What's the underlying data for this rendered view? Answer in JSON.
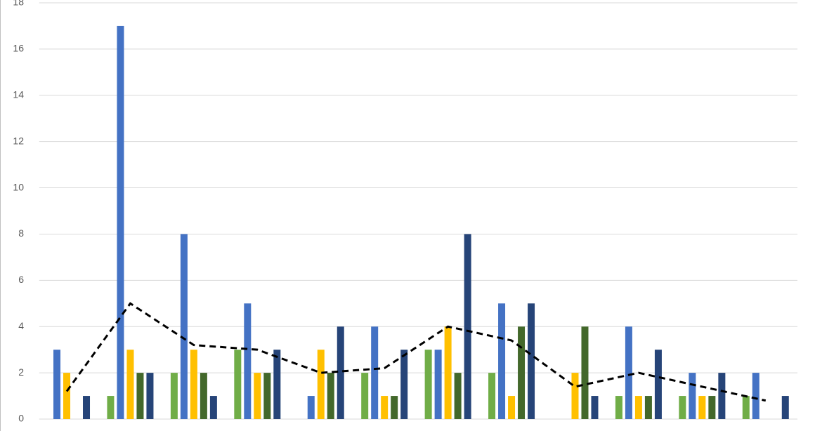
{
  "chart_data": {
    "type": "bar",
    "categories": [
      null,
      null,
      null,
      null,
      null,
      null,
      null,
      null,
      null,
      null,
      null,
      null
    ],
    "series": [
      {
        "color": "#70ad47",
        "values": [
          0,
          1,
          2,
          3,
          0,
          2,
          3,
          2,
          0,
          1,
          1,
          1
        ]
      },
      {
        "color": "#4472c4",
        "values": [
          3,
          17,
          8,
          5,
          1,
          4,
          3,
          5,
          0,
          4,
          2,
          2
        ]
      },
      {
        "color": "#ffc000",
        "values": [
          2,
          3,
          3,
          2,
          3,
          1,
          4,
          1,
          2,
          1,
          1,
          0
        ]
      },
      {
        "color": "#43682b",
        "values": [
          0,
          2,
          2,
          2,
          2,
          1,
          2,
          4,
          4,
          1,
          1,
          0
        ]
      },
      {
        "color": "#264478",
        "values": [
          1,
          2,
          1,
          3,
          4,
          3,
          8,
          5,
          1,
          3,
          2,
          1
        ]
      },
      {
        "type": "line",
        "dashed": true,
        "color": "#000000",
        "values": [
          1.2,
          5,
          3.2,
          3,
          2,
          2.2,
          4,
          3.4,
          1.4,
          2,
          1.4,
          0.8
        ]
      }
    ],
    "ylim": [
      0,
      18
    ],
    "yticks": [
      0,
      2,
      4,
      6,
      8,
      10,
      12,
      14,
      16,
      18
    ],
    "grid": true
  }
}
